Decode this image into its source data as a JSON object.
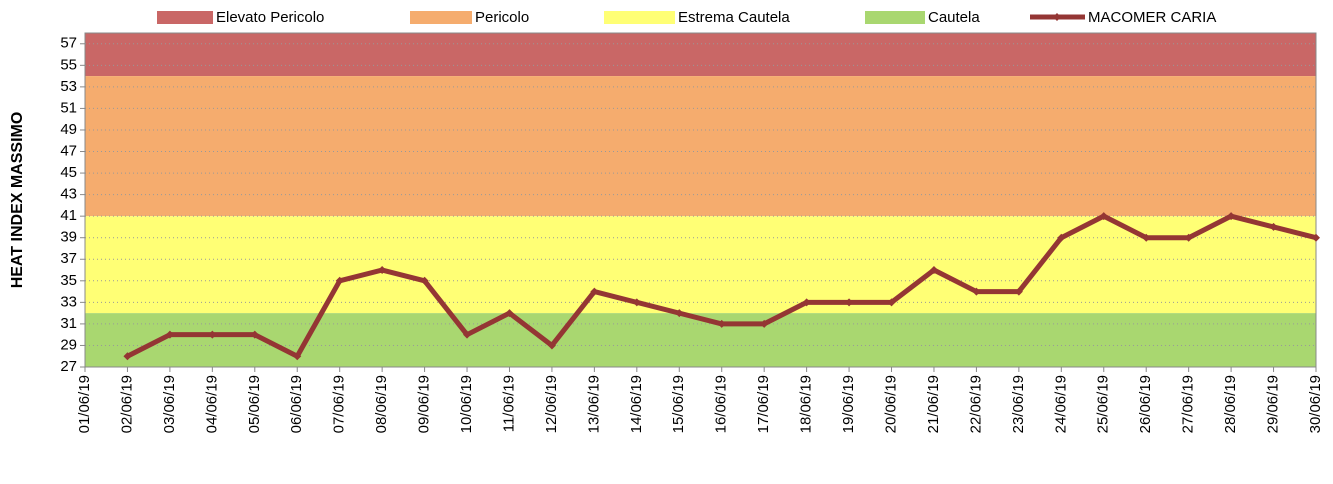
{
  "chart_data": {
    "type": "line",
    "y_label": "HEAT INDEX MASSIMO",
    "categories": [
      "01/06/19",
      "02/06/19",
      "03/06/19",
      "04/06/19",
      "05/06/19",
      "06/06/19",
      "07/06/19",
      "08/06/19",
      "09/06/19",
      "10/06/19",
      "11/06/19",
      "12/06/19",
      "13/06/19",
      "14/06/19",
      "15/06/19",
      "16/06/19",
      "17/06/19",
      "18/06/19",
      "19/06/19",
      "20/06/19",
      "21/06/19",
      "22/06/19",
      "23/06/19",
      "24/06/19",
      "25/06/19",
      "26/06/19",
      "27/06/19",
      "28/06/19",
      "29/06/19",
      "30/06/19"
    ],
    "bands": [
      {
        "name": "Elevato Pericolo",
        "color": "#c96766",
        "from": 54,
        "to": 58
      },
      {
        "name": "Pericolo",
        "color": "#f5ac6e",
        "from": 41,
        "to": 54
      },
      {
        "name": "Estrema Cautela",
        "color": "#ffff75",
        "from": 32,
        "to": 41
      },
      {
        "name": "Cautela",
        "color": "#a9d770",
        "from": 27,
        "to": 32
      }
    ],
    "series": [
      {
        "name": "MACOMER CARIA",
        "color": "#943634",
        "values": [
          null,
          28,
          30,
          30,
          30,
          28,
          35,
          36,
          35,
          30,
          32,
          29,
          34,
          33,
          32,
          31,
          31,
          33,
          33,
          33,
          36,
          34,
          34,
          39,
          41,
          39,
          39,
          41,
          40,
          39
        ]
      }
    ],
    "ylim": [
      27,
      58
    ],
    "yticks": [
      27,
      29,
      31,
      33,
      35,
      37,
      39,
      41,
      43,
      45,
      47,
      49,
      51,
      53,
      55,
      57
    ],
    "grid": true
  }
}
